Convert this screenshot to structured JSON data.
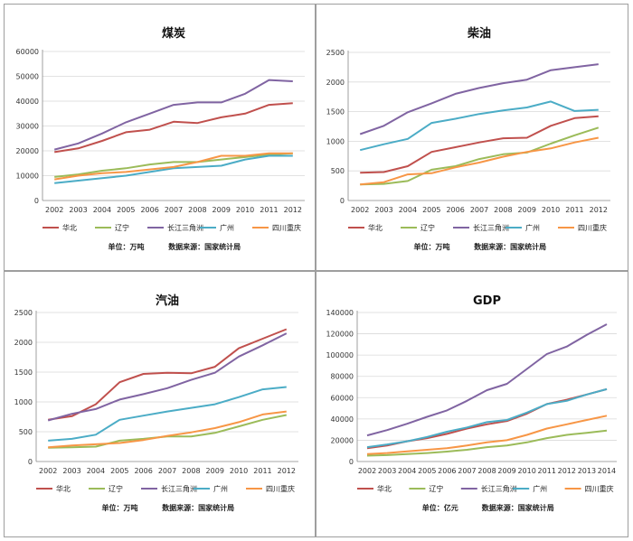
{
  "chart_data": [
    {
      "type": "line",
      "title": "煤炭",
      "x": [
        "2002",
        "2003",
        "2004",
        "2005",
        "2006",
        "2007",
        "2008",
        "2009",
        "2010",
        "2011",
        "2012"
      ],
      "ylim": [
        0,
        60000
      ],
      "yticks": [
        0,
        10000,
        20000,
        30000,
        40000,
        50000,
        60000
      ],
      "grid": true,
      "legend_position": "bottom",
      "note_unit": "单位：万吨",
      "note_source": "数据来源：国家统计局",
      "series": [
        {
          "name": "华北",
          "color": "#c0504d",
          "values": [
            19500,
            21000,
            24000,
            27500,
            28500,
            31700,
            31200,
            33500,
            35000,
            38500,
            39200
          ]
        },
        {
          "name": "辽宁",
          "color": "#9bbb59",
          "values": [
            9500,
            10500,
            12000,
            13000,
            14500,
            15500,
            15500,
            16500,
            17500,
            18500,
            19000
          ]
        },
        {
          "name": "长江三角洲",
          "color": "#8064a2",
          "values": [
            20500,
            23000,
            27000,
            31500,
            35000,
            38500,
            39500,
            39500,
            43000,
            48500,
            48000
          ]
        },
        {
          "name": "广州",
          "color": "#4bacc6",
          "values": [
            7000,
            8000,
            9000,
            10000,
            11500,
            13000,
            13500,
            14000,
            16500,
            18000,
            18000
          ]
        },
        {
          "name": "四川重庆",
          "color": "#f79646",
          "values": [
            8500,
            10000,
            11000,
            11500,
            12500,
            13500,
            15500,
            18000,
            18000,
            19000,
            19000
          ]
        }
      ]
    },
    {
      "type": "line",
      "title": "柴油",
      "x": [
        "2002",
        "2003",
        "2004",
        "2005",
        "2006",
        "2007",
        "2008",
        "2009",
        "2010",
        "2011",
        "2012"
      ],
      "ylim": [
        0,
        2500
      ],
      "yticks": [
        0,
        500,
        1000,
        1500,
        2000,
        2500
      ],
      "grid": true,
      "legend_position": "bottom",
      "note_unit": "单位：万吨",
      "note_source": "数据来源：国家统计局",
      "series": [
        {
          "name": "华北",
          "color": "#c0504d",
          "values": [
            470,
            480,
            580,
            820,
            900,
            980,
            1050,
            1060,
            1260,
            1390,
            1420
          ]
        },
        {
          "name": "辽宁",
          "color": "#9bbb59",
          "values": [
            270,
            280,
            330,
            520,
            580,
            700,
            780,
            810,
            960,
            1100,
            1230
          ]
        },
        {
          "name": "长江三角洲",
          "color": "#8064a2",
          "values": [
            1120,
            1260,
            1490,
            1640,
            1800,
            1900,
            1980,
            2040,
            2200,
            2250,
            2300
          ]
        },
        {
          "name": "广州",
          "color": "#4bacc6",
          "values": [
            850,
            950,
            1040,
            1310,
            1380,
            1460,
            1520,
            1570,
            1670,
            1510,
            1530
          ]
        },
        {
          "name": "四川重庆",
          "color": "#f79646",
          "values": [
            270,
            310,
            440,
            460,
            560,
            640,
            740,
            820,
            880,
            980,
            1060
          ]
        }
      ]
    },
    {
      "type": "line",
      "title": "汽油",
      "x": [
        "2002",
        "2003",
        "2004",
        "2005",
        "2006",
        "2007",
        "2008",
        "2009",
        "2010",
        "2011",
        "2012"
      ],
      "ylim": [
        0,
        2500
      ],
      "yticks": [
        0,
        500,
        1000,
        1500,
        2000,
        2500
      ],
      "grid": true,
      "legend_position": "bottom",
      "note_unit": "单位：万吨",
      "note_source": "数据来源：国家统计局",
      "series": [
        {
          "name": "华北",
          "color": "#c0504d",
          "values": [
            700,
            760,
            960,
            1330,
            1470,
            1490,
            1480,
            1590,
            1900,
            2060,
            2220
          ]
        },
        {
          "name": "辽宁",
          "color": "#9bbb59",
          "values": [
            230,
            240,
            250,
            350,
            380,
            420,
            420,
            480,
            590,
            700,
            780
          ]
        },
        {
          "name": "长江三角洲",
          "color": "#8064a2",
          "values": [
            690,
            800,
            880,
            1040,
            1130,
            1230,
            1370,
            1490,
            1760,
            1950,
            2150
          ]
        },
        {
          "name": "广州",
          "color": "#4bacc6",
          "values": [
            350,
            380,
            450,
            700,
            770,
            840,
            900,
            960,
            1080,
            1210,
            1250
          ]
        },
        {
          "name": "四川重庆",
          "color": "#f79646",
          "values": [
            240,
            270,
            290,
            310,
            360,
            430,
            490,
            560,
            660,
            790,
            840
          ]
        }
      ]
    },
    {
      "type": "line",
      "title": "GDP",
      "x": [
        "2002",
        "2003",
        "2004",
        "2005",
        "2006",
        "2007",
        "2008",
        "2009",
        "2010",
        "2011",
        "2012",
        "2013",
        "2014"
      ],
      "ylim": [
        0,
        140000
      ],
      "yticks": [
        0,
        20000,
        40000,
        60000,
        80000,
        100000,
        120000,
        140000
      ],
      "grid": true,
      "legend_position": "bottom",
      "note_unit": "单位：亿元",
      "note_source": "数据来源：国家统计局",
      "series": [
        {
          "name": "华北",
          "color": "#c0504d",
          "values": [
            12500,
            15000,
            19000,
            22000,
            26000,
            31000,
            35000,
            38000,
            45000,
            54000,
            58000,
            63000,
            68000
          ]
        },
        {
          "name": "辽宁",
          "color": "#9bbb59",
          "values": [
            5500,
            6000,
            7000,
            8000,
            9300,
            11000,
            13500,
            15000,
            18000,
            22000,
            25000,
            27000,
            29000
          ]
        },
        {
          "name": "长江三角洲",
          "color": "#8064a2",
          "values": [
            24500,
            29500,
            35500,
            42000,
            48000,
            57000,
            67000,
            73000,
            87000,
            101000,
            108000,
            119000,
            129000
          ]
        },
        {
          "name": "广州",
          "color": "#4bacc6",
          "values": [
            13500,
            16000,
            19000,
            23000,
            28000,
            32000,
            37000,
            39000,
            46000,
            54000,
            57000,
            63000,
            68000
          ]
        },
        {
          "name": "四川重庆",
          "color": "#f79646",
          "values": [
            7000,
            8000,
            9500,
            11000,
            12500,
            15000,
            18000,
            20000,
            25000,
            31000,
            35000,
            39000,
            43000
          ]
        }
      ]
    }
  ]
}
